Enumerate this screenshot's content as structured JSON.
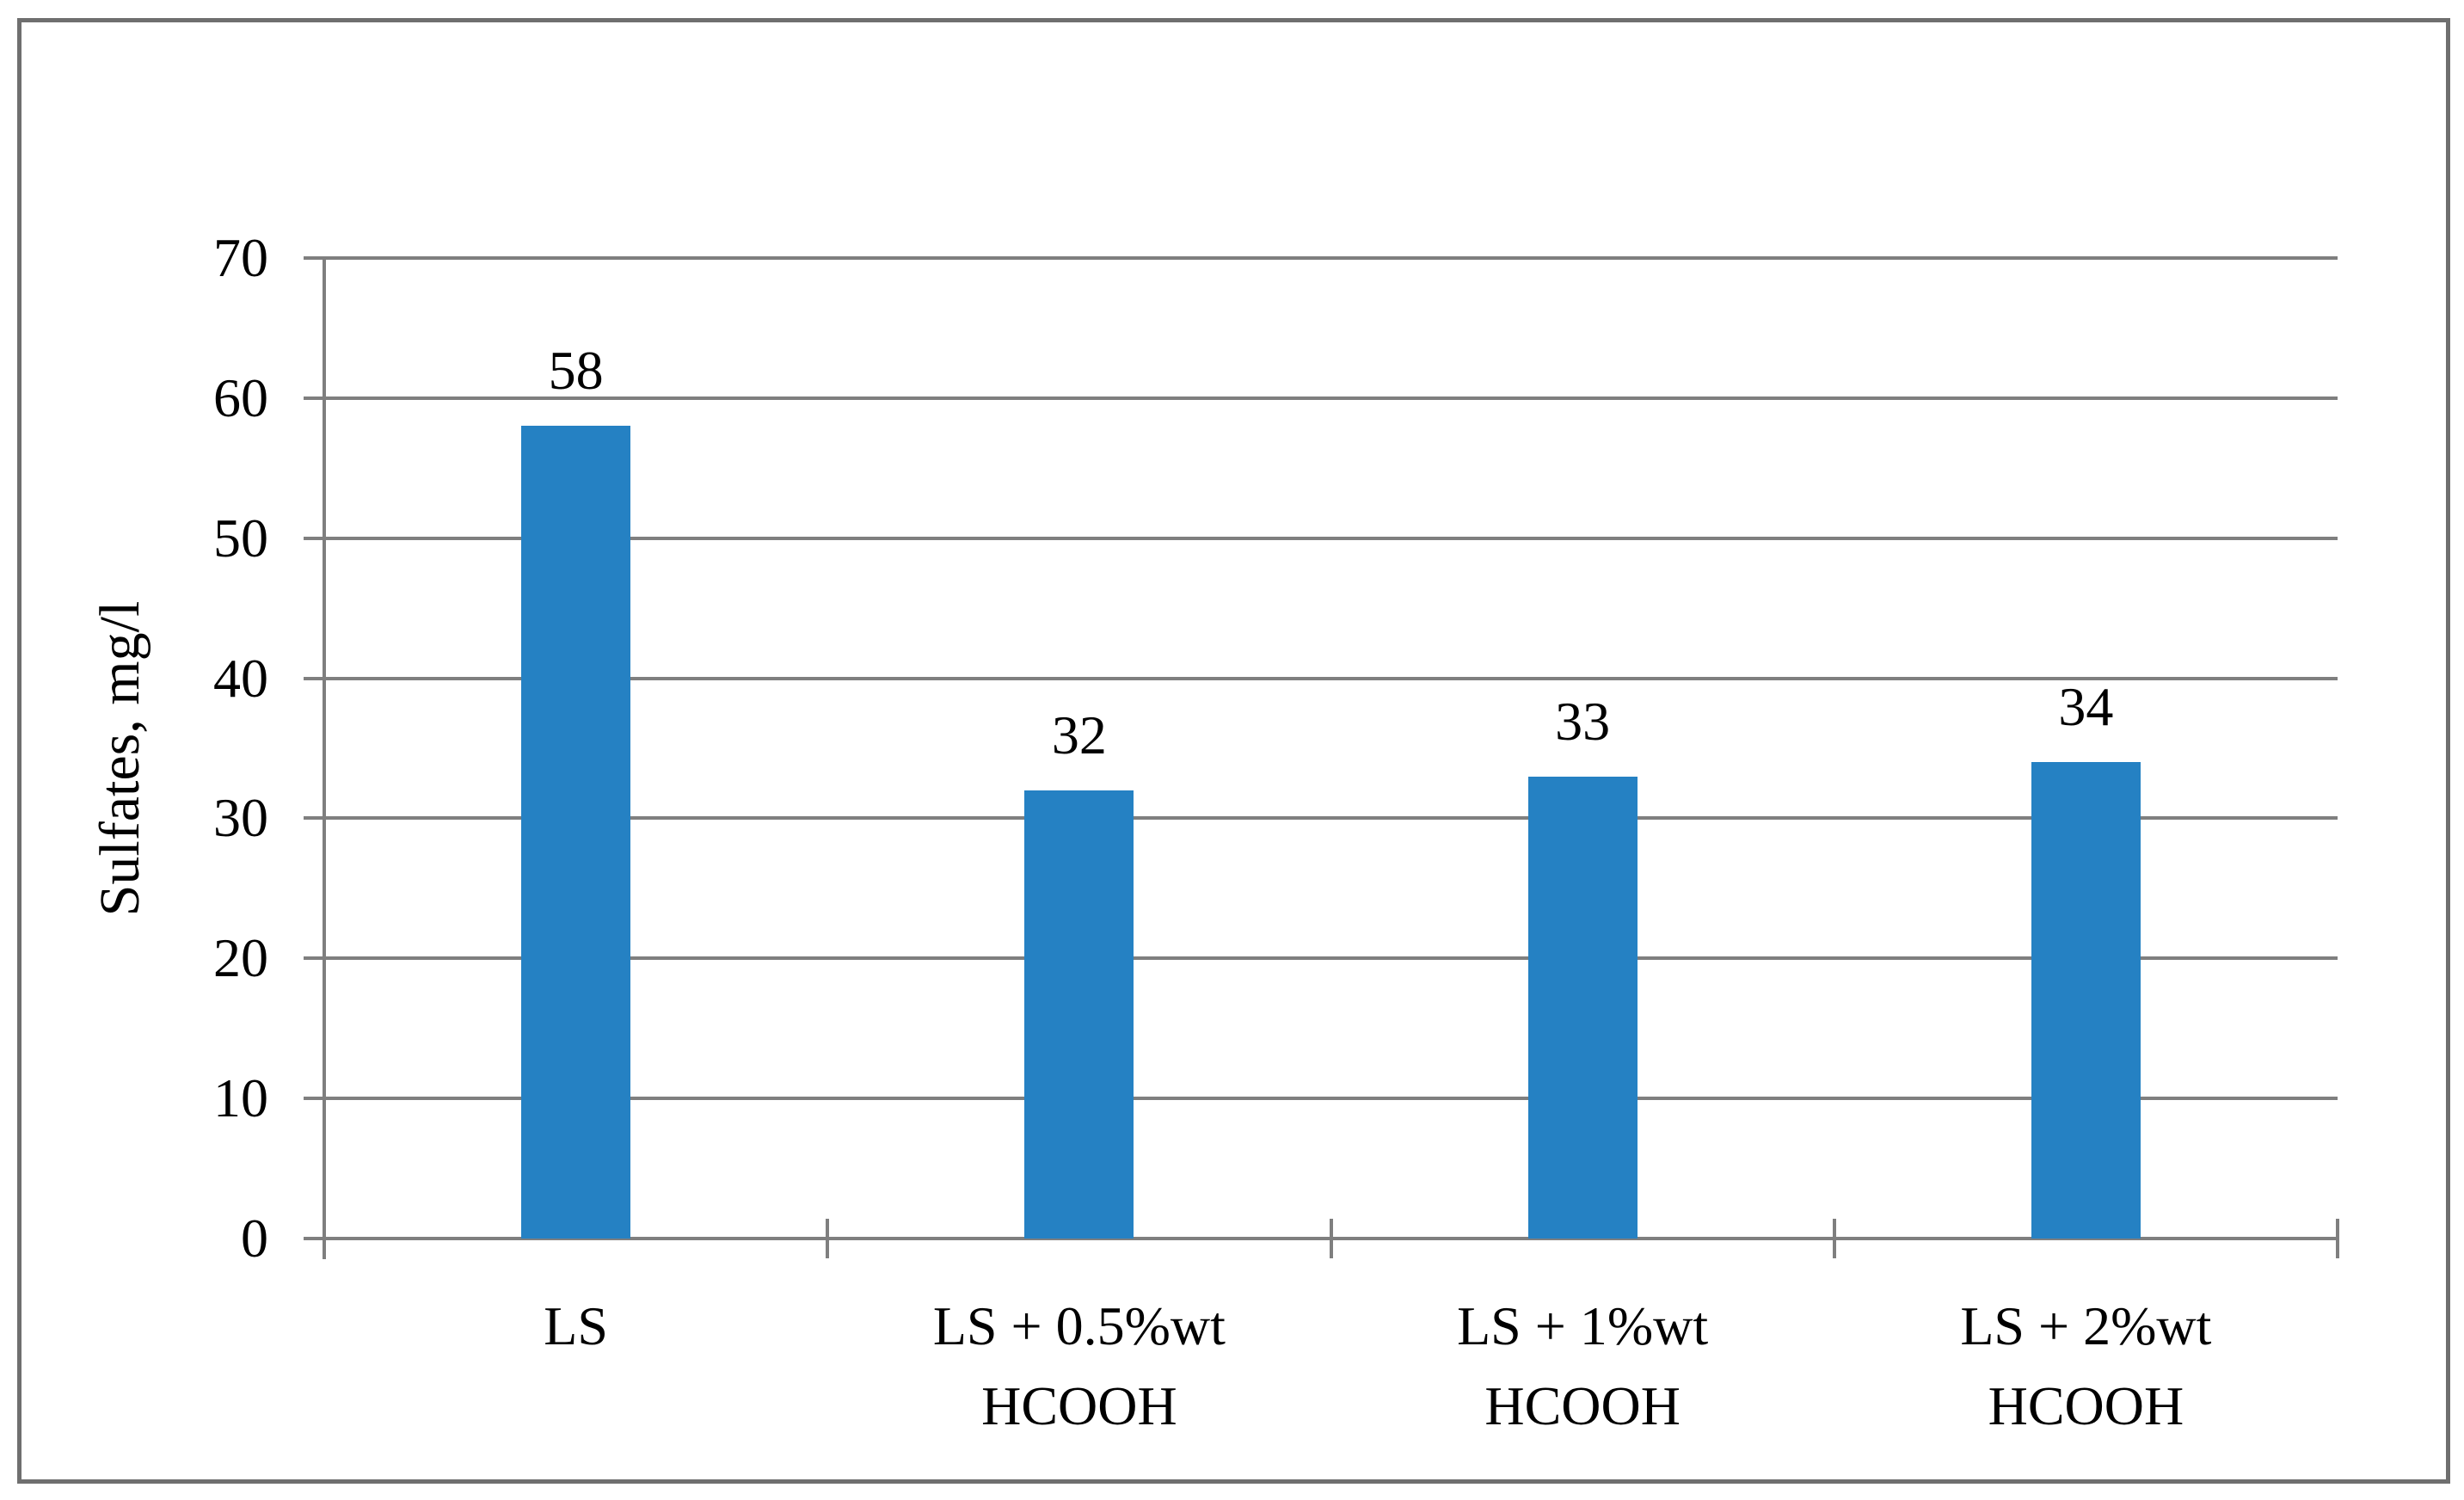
{
  "figure": {
    "background": "#FFFFFF",
    "border_color": "#6F6F6F"
  },
  "chart_data": {
    "type": "bar",
    "title": "",
    "categories": [
      "LS",
      "LS + 0.5%wt\nHCOOH",
      "LS + 1%wt\nHCOOH",
      "LS + 2%wt\nHCOOH"
    ],
    "values": [
      58,
      32,
      33,
      34
    ],
    "data_labels": [
      "58",
      "32",
      "33",
      "34"
    ],
    "xlabel": "",
    "ylabel": "Sulfates, mg/l",
    "ylim": [
      0,
      70
    ],
    "yticks": [
      0,
      10,
      20,
      30,
      40,
      50,
      60,
      70
    ],
    "grid": "horizontal-gridlines-on",
    "legend": "none",
    "bar_color": "#2581C3",
    "grid_color": "#7F7F7F",
    "axis_color": "#7F7F7F",
    "label_color": "#000000"
  }
}
